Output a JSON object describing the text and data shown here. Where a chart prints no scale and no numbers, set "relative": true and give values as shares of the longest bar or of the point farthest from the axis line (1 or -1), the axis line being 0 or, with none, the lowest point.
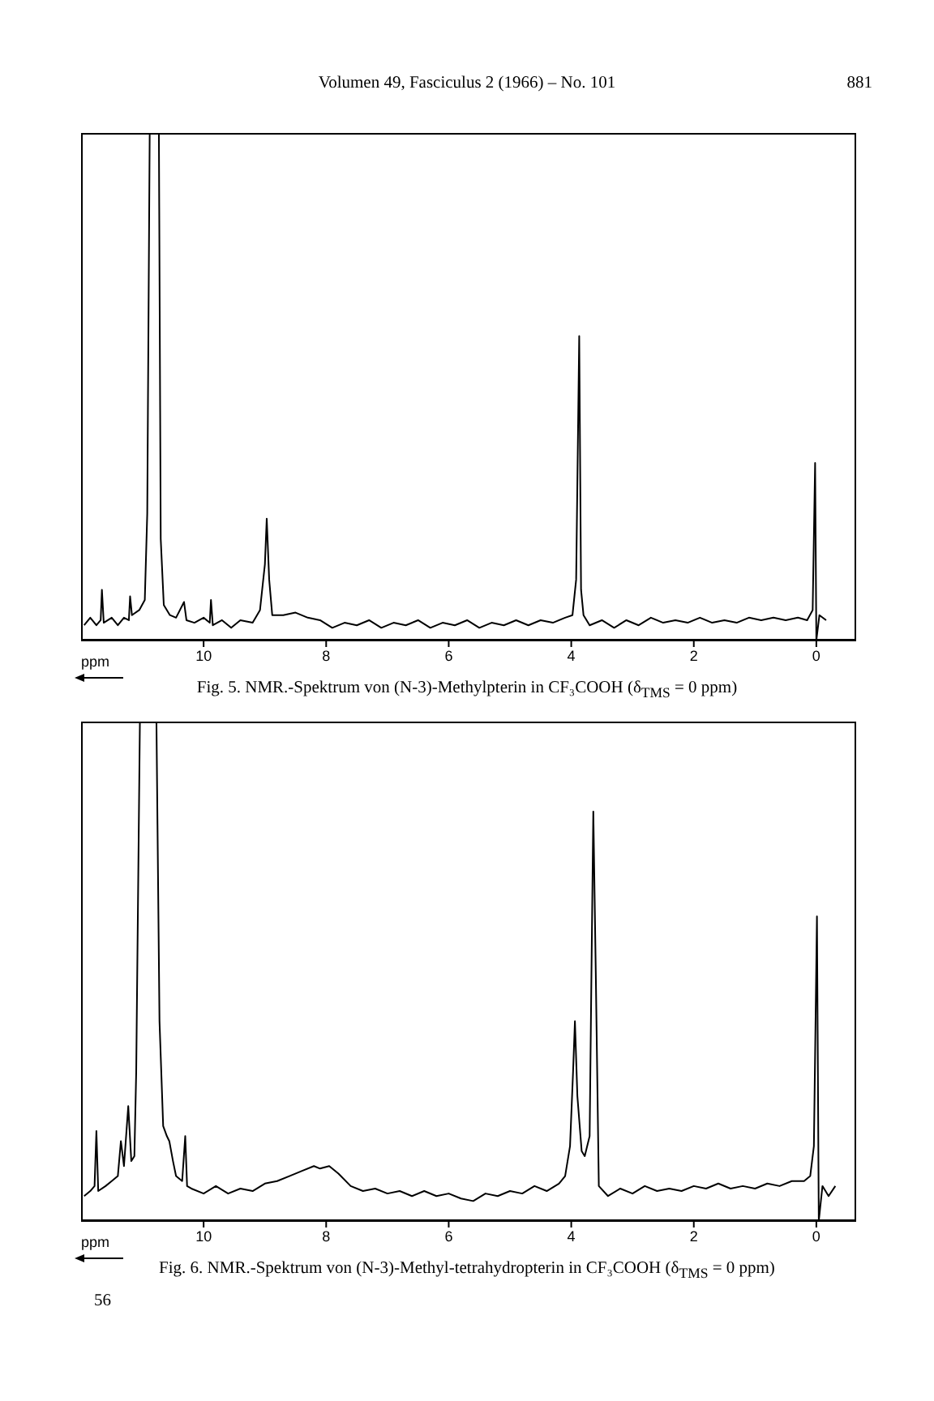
{
  "chart_data": [
    {
      "type": "line",
      "title": "Fig. 5. NMR.-Spektrum von (N-3)-Methylpterin in CF₃COOH (δ$_{TMS}$ = 0 ppm)",
      "xlabel": "ppm",
      "annotations": [
        "Volumen 49, Fasciculus 2 (1966) – No. 101",
        "881"
      ],
      "x": [
        11.95,
        11.85,
        11.75,
        11.68,
        11.66,
        11.63,
        11.5,
        11.4,
        11.3,
        11.22,
        11.2,
        11.17,
        11.05,
        10.96,
        10.92,
        10.88,
        10.73,
        10.7,
        10.65,
        10.55,
        10.45,
        10.32,
        10.28,
        10.15,
        10.0,
        9.9,
        9.88,
        9.85,
        9.7,
        9.55,
        9.4,
        9.2,
        9.08,
        9.0,
        8.97,
        8.93,
        8.88,
        8.7,
        8.5,
        8.3,
        8.1,
        7.9,
        7.7,
        7.5,
        7.3,
        7.1,
        6.9,
        6.7,
        6.5,
        6.3,
        6.1,
        5.9,
        5.7,
        5.5,
        5.3,
        5.1,
        4.9,
        4.7,
        4.5,
        4.3,
        4.1,
        3.98,
        3.92,
        3.87,
        3.84,
        3.8,
        3.7,
        3.5,
        3.3,
        3.1,
        2.9,
        2.7,
        2.5,
        2.3,
        2.1,
        1.9,
        1.7,
        1.5,
        1.3,
        1.1,
        0.9,
        0.7,
        0.5,
        0.3,
        0.15,
        0.06,
        0.02,
        0.0,
        -0.05,
        -0.16
      ],
      "series": [
        {
          "color": "#000000",
          "values": [
            0.03,
            0.045,
            0.03,
            0.04,
            0.1,
            0.035,
            0.045,
            0.03,
            0.045,
            0.04,
            0.087,
            0.05,
            0.06,
            0.08,
            0.25,
            1,
            1,
            0.2,
            0.07,
            0.05,
            0.045,
            0.076,
            0.04,
            0.035,
            0.045,
            0.035,
            0.08,
            0.03,
            0.04,
            0.025,
            0.04,
            0.035,
            0.06,
            0.15,
            0.24,
            0.12,
            0.05,
            0.05,
            0.055,
            0.045,
            0.04,
            0.025,
            0.035,
            0.03,
            0.04,
            0.025,
            0.035,
            0.03,
            0.04,
            0.025,
            0.035,
            0.03,
            0.04,
            0.025,
            0.035,
            0.03,
            0.04,
            0.03,
            0.04,
            0.035,
            0.045,
            0.05,
            0.12,
            0.6,
            0.1,
            0.05,
            0.03,
            0.04,
            0.025,
            0.04,
            0.03,
            0.045,
            0.035,
            0.04,
            0.035,
            0.045,
            0.035,
            0.04,
            0.035,
            0.045,
            0.04,
            0.045,
            0.04,
            0.045,
            0.04,
            0.06,
            0.35,
            0,
            0.05,
            0.04
          ]
        }
      ],
      "xlim": [
        12,
        -0.65
      ],
      "xticks": [
        10,
        8,
        6,
        4,
        2,
        0
      ],
      "relative": true,
      "tick_labels": "x"
    },
    {
      "type": "line",
      "title": "Fig. 6. NMR.-Spektrum von (N-3)-Methyl-tetrahydropterin in CF₃COOH (δ$_{TMS}$ = 0 ppm)",
      "xlabel": "ppm",
      "annotations": [
        "56"
      ],
      "x": [
        11.95,
        11.85,
        11.78,
        11.75,
        11.72,
        11.6,
        11.5,
        11.4,
        11.35,
        11.3,
        11.23,
        11.18,
        11.13,
        11.1,
        11.04,
        10.77,
        10.72,
        10.66,
        10.6,
        10.56,
        10.5,
        10.45,
        10.35,
        10.3,
        10.27,
        10.2,
        10.0,
        9.8,
        9.6,
        9.4,
        9.2,
        9.0,
        8.8,
        8.6,
        8.4,
        8.2,
        8.1,
        7.95,
        7.8,
        7.6,
        7.4,
        7.2,
        7.0,
        6.8,
        6.6,
        6.4,
        6.2,
        6.0,
        5.8,
        5.6,
        5.4,
        5.2,
        5.0,
        4.8,
        4.6,
        4.4,
        4.2,
        4.1,
        4.02,
        3.97,
        3.94,
        3.9,
        3.83,
        3.78,
        3.7,
        3.67,
        3.64,
        3.6,
        3.55,
        3.4,
        3.2,
        3.0,
        2.8,
        2.6,
        2.4,
        2.2,
        2.0,
        1.8,
        1.6,
        1.4,
        1.2,
        1.0,
        0.8,
        0.6,
        0.4,
        0.2,
        0.1,
        0.04,
        -0.01,
        -0.04,
        -0.1,
        -0.2,
        -0.31
      ],
      "series": [
        {
          "color": "#000000",
          "values": [
            0.05,
            0.06,
            0.07,
            0.18,
            0.06,
            0.07,
            0.08,
            0.09,
            0.16,
            0.11,
            0.23,
            0.12,
            0.13,
            0.3,
            1,
            1,
            0.4,
            0.19,
            0.17,
            0.16,
            0.12,
            0.09,
            0.08,
            0.17,
            0.07,
            0.065,
            0.055,
            0.07,
            0.055,
            0.065,
            0.06,
            0.075,
            0.08,
            0.09,
            0.1,
            0.11,
            0.105,
            0.11,
            0.095,
            0.07,
            0.06,
            0.065,
            0.055,
            0.06,
            0.05,
            0.06,
            0.05,
            0.055,
            0.045,
            0.04,
            0.055,
            0.05,
            0.06,
            0.055,
            0.07,
            0.06,
            0.075,
            0.09,
            0.15,
            0.3,
            0.4,
            0.25,
            0.14,
            0.13,
            0.17,
            0.5,
            0.82,
            0.5,
            0.07,
            0.05,
            0.065,
            0.055,
            0.07,
            0.06,
            0.065,
            0.06,
            0.07,
            0.065,
            0.075,
            0.065,
            0.07,
            0.065,
            0.075,
            0.07,
            0.08,
            0.08,
            0.09,
            0.15,
            0.61,
            0,
            0.07,
            0.05,
            0.07
          ]
        }
      ],
      "xlim": [
        12,
        -0.65
      ],
      "xticks": [
        10,
        8,
        6,
        4,
        2,
        0
      ],
      "relative": true,
      "tick_labels": "x"
    }
  ]
}
